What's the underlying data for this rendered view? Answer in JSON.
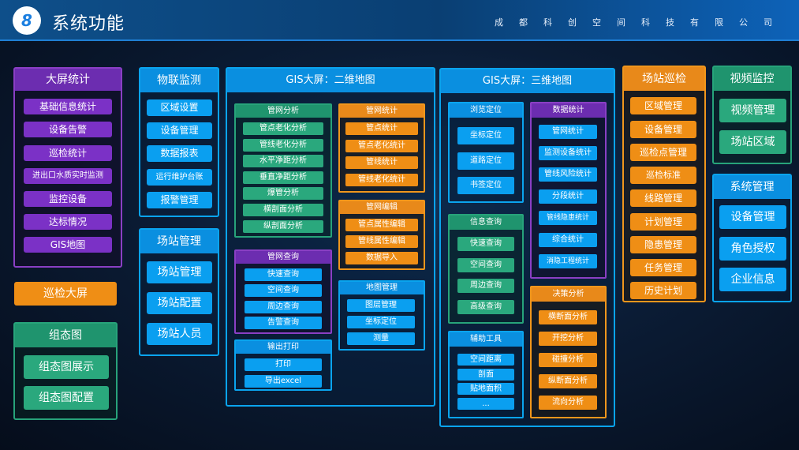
{
  "header": {
    "badge": "8",
    "title": "系统功能",
    "company": "成都科创空间科技有限公司"
  },
  "bigscreen": {
    "title": "大屏统计",
    "items": [
      "基础信息统计",
      "设备告警",
      "巡检统计",
      "进出口水质实时监测",
      "监控设备",
      "达标情况",
      "GIS地图"
    ]
  },
  "patrol_screen": {
    "label": "巡检大屏"
  },
  "config_diagram": {
    "title": "组态图",
    "items": [
      "组态图展示",
      "组态图配置"
    ]
  },
  "iot": {
    "title": "物联监测",
    "items": [
      "区域设置",
      "设备管理",
      "数据报表",
      "运行维护台账",
      "报警管理"
    ]
  },
  "station_mgmt": {
    "title": "场站管理",
    "items": [
      "场站管理",
      "场站配置",
      "场站人员"
    ]
  },
  "gis2d": {
    "title": "GIS大屏：二维地图",
    "pipe_analysis": {
      "title": "管网分析",
      "items": [
        "管点老化分析",
        "管线老化分析",
        "水平净距分析",
        "垂直净距分析",
        "爆管分析",
        "横剖面分析",
        "纵剖面分析"
      ]
    },
    "pipe_stats": {
      "title": "管网统计",
      "items": [
        "管点统计",
        "管点老化统计",
        "管线统计",
        "管线老化统计"
      ]
    },
    "pipe_edit": {
      "title": "管网编辑",
      "items": [
        "管点属性编辑",
        "管线属性编辑",
        "数据导入"
      ]
    },
    "pipe_query": {
      "title": "管网查询",
      "items": [
        "快速查询",
        "空间查询",
        "周边查询",
        "告警查询"
      ]
    },
    "map_mgmt": {
      "title": "地图管理",
      "items": [
        "图层管理",
        "坐标定位",
        "测量"
      ]
    },
    "print": {
      "title": "输出打印",
      "items": [
        "打印",
        "导出excel"
      ]
    }
  },
  "gis3d": {
    "title": "GIS大屏：三维地图",
    "browse": {
      "title": "浏览定位",
      "items": [
        "坐标定位",
        "道路定位",
        "书签定位"
      ]
    },
    "info_query": {
      "title": "信息查询",
      "items": [
        "快速查询",
        "空间查询",
        "周边查询",
        "高级查询"
      ]
    },
    "aux_tools": {
      "title": "辅助工具",
      "items": [
        "空间距离",
        "剖面",
        "贴地面积",
        "..."
      ]
    },
    "data_stats": {
      "title": "数据统计",
      "items": [
        "管网统计",
        "监测设备统计",
        "管线风险统计",
        "分段统计",
        "管线隐患统计",
        "综合统计",
        "消隐工程统计"
      ]
    },
    "decision": {
      "title": "决策分析",
      "items": [
        "横断面分析",
        "开挖分析",
        "碰撞分析",
        "纵断面分析",
        "流向分析"
      ]
    }
  },
  "station_patrol": {
    "title": "场站巡检",
    "items": [
      "区域管理",
      "设备管理",
      "巡检点管理",
      "巡检标准",
      "线路管理",
      "计划管理",
      "隐患管理",
      "任务管理",
      "历史计划"
    ]
  },
  "video": {
    "title": "视频监控",
    "items": [
      "视频管理",
      "场站区域"
    ]
  },
  "sysmgmt": {
    "title": "系统管理",
    "items": [
      "设备管理",
      "角色授权",
      "企业信息"
    ]
  }
}
